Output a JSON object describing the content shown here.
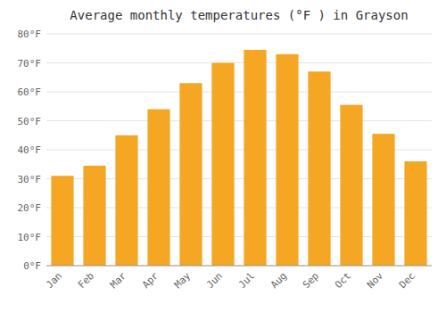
{
  "chart_data": {
    "type": "bar",
    "title": "Average monthly temperatures (°F ) in Grayson",
    "categories": [
      "Jan",
      "Feb",
      "Mar",
      "Apr",
      "May",
      "Jun",
      "Jul",
      "Aug",
      "Sep",
      "Oct",
      "Nov",
      "Dec"
    ],
    "values": [
      31,
      34.5,
      45,
      54,
      63,
      70,
      74.5,
      73,
      67,
      55.5,
      45.5,
      36
    ],
    "color": "#F5A623",
    "ylim": [
      0,
      80
    ],
    "yticks": [
      {
        "value": 0,
        "label": "0°F"
      },
      {
        "value": 10,
        "label": "10°F"
      },
      {
        "value": 20,
        "label": "20°F"
      },
      {
        "value": 30,
        "label": "30°F"
      },
      {
        "value": 40,
        "label": "40°F"
      },
      {
        "value": 50,
        "label": "50°F"
      },
      {
        "value": 60,
        "label": "60°F"
      },
      {
        "value": 70,
        "label": "70°F"
      },
      {
        "value": 80,
        "label": "80°F"
      }
    ],
    "grid": true
  }
}
